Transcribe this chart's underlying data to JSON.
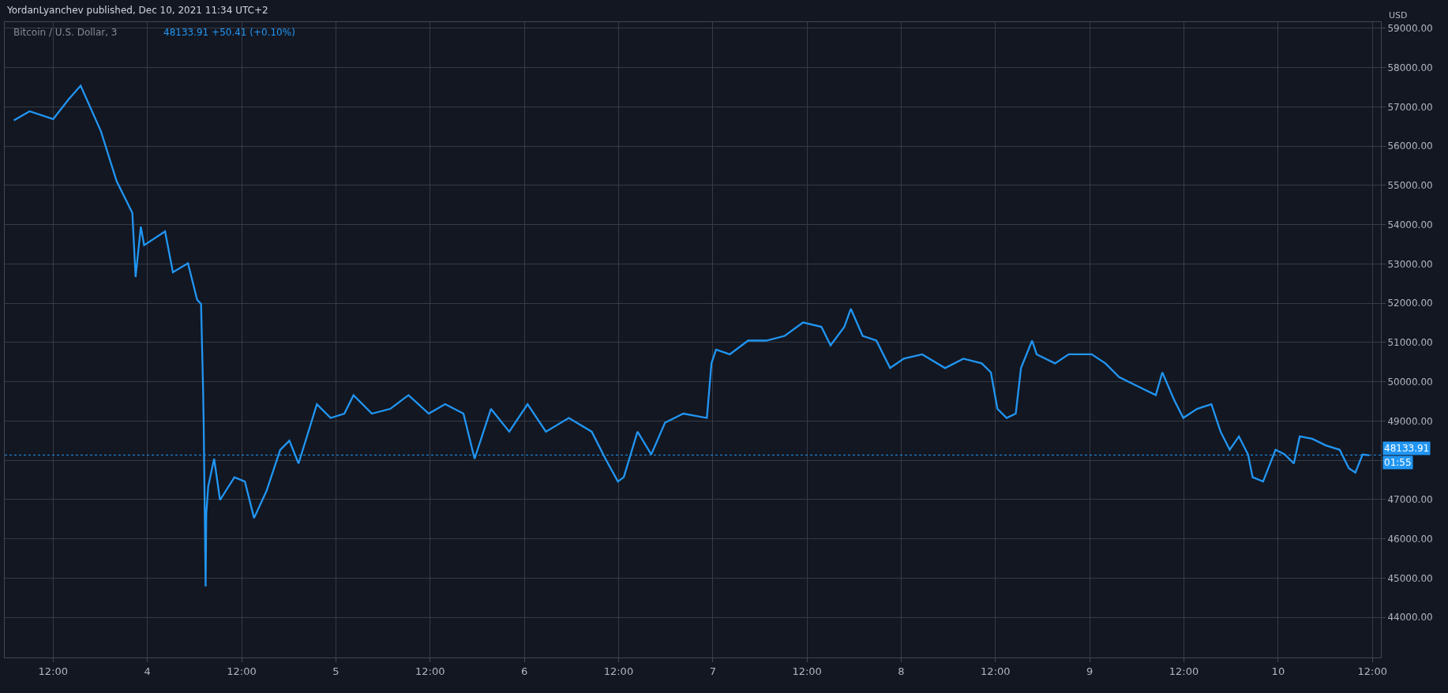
{
  "chart_data": {
    "type": "line",
    "title": "Bitcoin / U.S. Dollar, 3",
    "subtitle": "48133.91 +50.41 (+0.10%)",
    "ylabel": "USD",
    "annotations": [
      "YordanLyanchev published, Dec 10, 2021 11:34 UTC+2",
      "01:55"
    ],
    "series": [
      {
        "color": "#2196f3",
        "x": [
          "2021-12-03T07:00",
          "2021-12-03T09:00",
          "2021-12-03T12:00",
          "2021-12-03T14:00",
          "2021-12-03T15:30",
          "2021-12-03T18:05",
          "2021-12-03T20:05",
          "2021-12-03T22:05",
          "2021-12-03T22:30",
          "2021-12-03T23:10",
          "2021-12-03T23:35",
          "2021-12-04T02:15",
          "2021-12-04T03:15",
          "2021-12-04T05:10",
          "2021-12-04T06:20",
          "2021-12-04T06:50",
          "2021-12-04T07:05",
          "2021-12-04T07:10",
          "2021-12-04T07:25",
          "2021-12-04T07:30",
          "2021-12-04T07:45",
          "2021-12-04T08:30",
          "2021-12-04T09:15",
          "2021-12-04T11:05",
          "2021-12-04T12:25",
          "2021-12-04T13:35",
          "2021-12-04T15:10",
          "2021-12-04T16:55",
          "2021-12-04T18:05",
          "2021-12-04T19:15",
          "2021-12-04T21:35",
          "2021-12-04T23:20",
          "2021-12-05T01:05",
          "2021-12-05T02:15",
          "2021-12-05T04:35",
          "2021-12-05T06:55",
          "2021-12-05T09:15",
          "2021-12-05T11:50",
          "2021-12-05T13:55",
          "2021-12-05T16:15",
          "2021-12-05T17:40",
          "2021-12-05T19:45",
          "2021-12-05T22:05",
          "2021-12-06T00:25",
          "2021-12-06T02:45",
          "2021-12-06T05:40",
          "2021-12-06T08:35",
          "2021-12-06T10:20",
          "2021-12-06T11:55",
          "2021-12-06T12:40",
          "2021-12-06T14:25",
          "2021-12-06T16:10",
          "2021-12-06T17:55",
          "2021-12-06T20:15",
          "2021-12-06T23:15",
          "2021-12-06T23:50",
          "2021-12-07T00:25",
          "2021-12-07T02:10",
          "2021-12-07T04:30",
          "2021-12-07T06:50",
          "2021-12-07T09:10",
          "2021-12-07T11:30",
          "2021-12-07T13:50",
          "2021-12-07T15:00",
          "2021-12-07T16:45",
          "2021-12-07T17:35",
          "2021-12-07T19:05",
          "2021-12-07T20:50",
          "2021-12-07T22:35",
          "2021-12-08T00:20",
          "2021-12-08T02:40",
          "2021-12-08T05:35",
          "2021-12-08T07:55",
          "2021-12-08T10:15",
          "2021-12-08T11:25",
          "2021-12-08T12:15",
          "2021-12-08T13:25",
          "2021-12-08T14:35",
          "2021-12-08T15:15",
          "2021-12-08T16:40",
          "2021-12-08T17:15",
          "2021-12-08T19:35",
          "2021-12-08T21:20",
          "2021-12-09T00:15",
          "2021-12-09T02:00",
          "2021-12-09T03:45",
          "2021-12-09T06:05",
          "2021-12-09T08:25",
          "2021-12-09T09:15",
          "2021-12-09T10:45",
          "2021-12-09T11:55",
          "2021-12-09T13:40",
          "2021-12-09T15:30",
          "2021-12-09T16:40",
          "2021-12-09T17:50",
          "2021-12-09T19:00",
          "2021-12-09T20:10",
          "2021-12-09T20:45",
          "2021-12-09T22:05",
          "2021-12-09T23:40",
          "2021-12-10T00:50",
          "2021-12-10T02:00",
          "2021-12-10T02:45",
          "2021-12-10T04:20",
          "2021-12-10T06:05",
          "2021-12-10T07:50",
          "2021-12-10T09:00",
          "2021-12-10T09:50",
          "2021-12-10T10:45",
          "2021-12-10T11:35"
        ],
        "values": [
          56660,
          56890,
          56690,
          57200,
          57540,
          56380,
          55110,
          54300,
          52670,
          53950,
          53480,
          53830,
          52790,
          53020,
          52090,
          51980,
          49890,
          48960,
          44790,
          46640,
          47340,
          48040,
          46990,
          47570,
          47460,
          46530,
          47220,
          48270,
          48500,
          47920,
          49430,
          49080,
          49190,
          49660,
          49190,
          49310,
          49660,
          49190,
          49430,
          49190,
          48040,
          49310,
          48730,
          49430,
          48730,
          49080,
          48730,
          48040,
          47460,
          47570,
          48730,
          48150,
          48960,
          49190,
          49080,
          50470,
          50820,
          50700,
          51050,
          51050,
          51170,
          51510,
          51400,
          50930,
          51400,
          51860,
          51170,
          51050,
          50350,
          50590,
          50700,
          50350,
          50590,
          50470,
          50240,
          49310,
          49080,
          49190,
          50350,
          51050,
          50700,
          50470,
          50700,
          50700,
          50470,
          50120,
          49890,
          49660,
          50240,
          49540,
          49080,
          49310,
          49430,
          48730,
          48270,
          48610,
          48150,
          47570,
          47460,
          48270,
          48150,
          47920,
          48610,
          48550,
          48380,
          48270,
          47800,
          47690,
          48150,
          48130
        ]
      }
    ],
    "xlim": [
      "2021-12-03T05:50",
      "2021-12-10T13:05"
    ],
    "xticks": [
      {
        "value": "2021-12-03T12:00",
        "label": "12:00"
      },
      {
        "value": "2021-12-04",
        "label": "4"
      },
      {
        "value": "2021-12-04T12:00",
        "label": "12:00"
      },
      {
        "value": "2021-12-05",
        "label": "5"
      },
      {
        "value": "2021-12-05T12:00",
        "label": "12:00"
      },
      {
        "value": "2021-12-06",
        "label": "6"
      },
      {
        "value": "2021-12-06T12:00",
        "label": "12:00"
      },
      {
        "value": "2021-12-07",
        "label": "7"
      },
      {
        "value": "2021-12-07T12:00",
        "label": "12:00"
      },
      {
        "value": "2021-12-08",
        "label": "8"
      },
      {
        "value": "2021-12-08T12:00",
        "label": "12:00"
      },
      {
        "value": "2021-12-09",
        "label": "9"
      },
      {
        "value": "2021-12-09T12:00",
        "label": "12:00"
      },
      {
        "value": "2021-12-10",
        "label": "10"
      },
      {
        "value": "2021-12-10T12:00",
        "label": "12:00"
      }
    ],
    "ylim": [
      42980,
      59160
    ],
    "yticks": [
      {
        "value": 44000,
        "label": "44000.00"
      },
      {
        "value": 45000,
        "label": "45000.00"
      },
      {
        "value": 46000,
        "label": "46000.00"
      },
      {
        "value": 47000,
        "label": "47000.00"
      },
      {
        "value": 48000,
        "label": null
      },
      {
        "value": 49000,
        "label": "49000.00"
      },
      {
        "value": 50000,
        "label": "50000.00"
      },
      {
        "value": 51000,
        "label": "51000.00"
      },
      {
        "value": 52000,
        "label": "52000.00"
      },
      {
        "value": 53000,
        "label": "53000.00"
      },
      {
        "value": 54000,
        "label": "54000.00"
      },
      {
        "value": 55000,
        "label": "55000.00"
      },
      {
        "value": 56000,
        "label": "56000.00"
      },
      {
        "value": 57000,
        "label": "57000.00"
      },
      {
        "value": 58000,
        "label": "58000.00"
      },
      {
        "value": 59000,
        "label": "59000.00"
      }
    ],
    "ref_lines": [
      {
        "axis": "y",
        "value": 48133.91,
        "label": "48133.91",
        "color": "#2196f3",
        "line_style": "dotted"
      }
    ],
    "grid": true,
    "marker": "none",
    "line_style": "solid"
  }
}
